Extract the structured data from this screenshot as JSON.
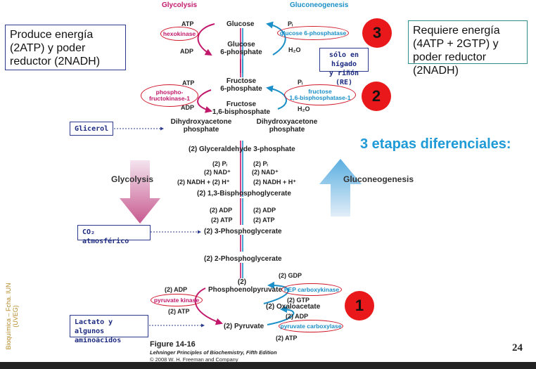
{
  "side_boxes": {
    "left_top": "Produce energía (2ATP) y poder reductor (2NADH)",
    "right_top": "Requiere energía (4ATP + 2GTP) y poder reductor (2NADH)"
  },
  "headers": {
    "glycolysis": "Glycolysis",
    "gluconeogenesis": "Gluconeogenesis"
  },
  "heading_stages": "3 etapas diferenciales:",
  "metabolites": {
    "glucose": "Glucose",
    "g6p_1": "Glucose",
    "g6p_2": "6-phosphate",
    "f6p_1": "Fructose",
    "f6p_2": "6-phosphate",
    "fbp_1": "Fructose",
    "fbp_2": "1,6-bisphosphate",
    "dhap_l1": "Dihydroxyacetone",
    "dhap_l2": "phosphate",
    "dhap_r1": "Dihydroxyacetone",
    "dhap_r2": "phosphate",
    "gap": "(2) Glyceraldehyde 3-phosphate",
    "bpg": "(2) 1,3-Bisphosphoglycerate",
    "pg3": "(2) 3-Phosphoglycerate",
    "pg2": "(2) 2-Phosphoglycerate",
    "pep_1": "(2)",
    "pep_2": "Phosphoenolpyruvate",
    "oaa": "(2) Oxaloacetate",
    "pyr": "(2) Pyruvate"
  },
  "cofactors": {
    "atp1": "ATP",
    "adp1": "ADP",
    "pi1": "Pᵢ",
    "h2o1": "H₂O",
    "atp2": "ATP",
    "adp2": "ADP",
    "pi2": "Pᵢ",
    "h2o2": "H₂O",
    "pi_l": "(2) Pᵢ",
    "pi_r": "(2) Pᵢ",
    "nad_l": "(2) NAD⁺",
    "nad_r": "(2) NAD⁺",
    "nadh_l": "(2) NADH + (2) H⁺",
    "nadh_r": "(2) NADH + H⁺",
    "adp_l": "(2) ADP",
    "adp_r": "(2) ADP",
    "atp_l": "(2) ATP",
    "atp_r": "(2) ATP",
    "gdp": "(2) GDP",
    "gtp": "(2) GTP",
    "pk_adp": "(2) ADP",
    "pk_atp": "(2) ATP",
    "pc_adp": "(2) ADP",
    "pc_atp": "(2) ATP"
  },
  "enzymes": {
    "hexokinase": "hexokinase",
    "g6pase": "glucose 6-phosphatase",
    "pfk_1": "phospho-",
    "pfk_2": "fructokinase-1",
    "fbpase_1": "fructose",
    "fbpase_2": "1,6-bisphosphatase-1",
    "pepck": "PEP carboxykinase",
    "pk": "pyruvate kinase",
    "pc": "pyruvate carboxylase"
  },
  "notes": {
    "liver_1": "sólo en hígado",
    "liver_2": "y riñón (RE)",
    "glicerol": "Glicerol",
    "co2": "CO₂ atmosférico",
    "lactato_1": "Lactato y algunos",
    "lactato_2": "aminoácidos"
  },
  "stage_numbers": [
    "3",
    "2",
    "1"
  ],
  "arrow_labels": {
    "left": "Glycolysis",
    "right": "Gluconeogenesis"
  },
  "figure": {
    "title": "Figure 14-16",
    "subtitle": "Lehninger Principles of Biochemistry, Fifth Edition",
    "copyright": "© 2008 W. H. Freeman and Company"
  },
  "page_number": "24",
  "side_credit": "Bioquímica – Fcha. IUN (UVEG)",
  "colors": {
    "glycolysis": "#c2186b",
    "gluconeogenesis": "#1b8fc7",
    "highlight": "#e8181b",
    "box_border": "#2b3a8c"
  }
}
